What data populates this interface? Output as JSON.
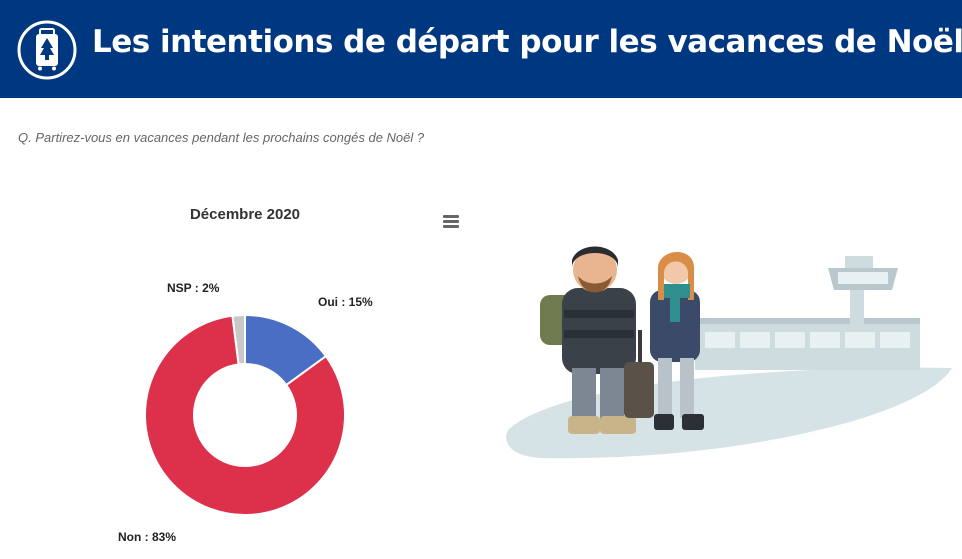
{
  "header": {
    "title": "Les intentions de départ pour les vacances de Noël",
    "icon": "suitcase-tree-icon",
    "background": "#003781"
  },
  "question": "Q. Partirez-vous en vacances pendant les prochains congés de Noël ?",
  "chart_menu": {
    "icon": "hamburger-menu-icon"
  },
  "illustration": {
    "icon": "travelers-at-airport-illustration"
  },
  "chart_data": {
    "type": "pie",
    "donut": true,
    "title": "Décembre 2020",
    "slices": [
      {
        "name": "Oui",
        "value": 15,
        "label": "Oui : 15%",
        "color": "#4a6ec3"
      },
      {
        "name": "Non",
        "value": 83,
        "label": "Non : 83%",
        "color": "#dd304a"
      },
      {
        "name": "NSP",
        "value": 2,
        "label": "NSP : 2%",
        "color": "#c8c8c8"
      }
    ]
  }
}
